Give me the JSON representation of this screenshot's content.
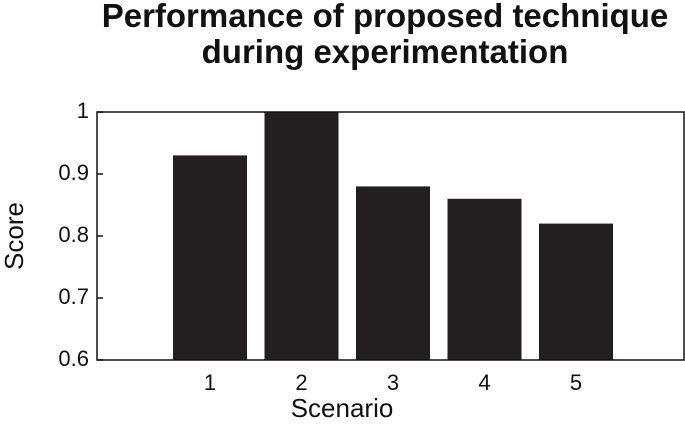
{
  "chart_data": {
    "type": "bar",
    "title": "Performance of proposed technique during experimentation",
    "xlabel": "Scenario",
    "ylabel": "Score",
    "categories": [
      "1",
      "2",
      "3",
      "4",
      "5"
    ],
    "values": [
      0.93,
      1.0,
      0.88,
      0.86,
      0.82
    ],
    "color": "#231f20",
    "ylim": [
      0.6,
      1
    ],
    "yticks": [
      0.6,
      0.7,
      0.8,
      0.9,
      1
    ]
  }
}
